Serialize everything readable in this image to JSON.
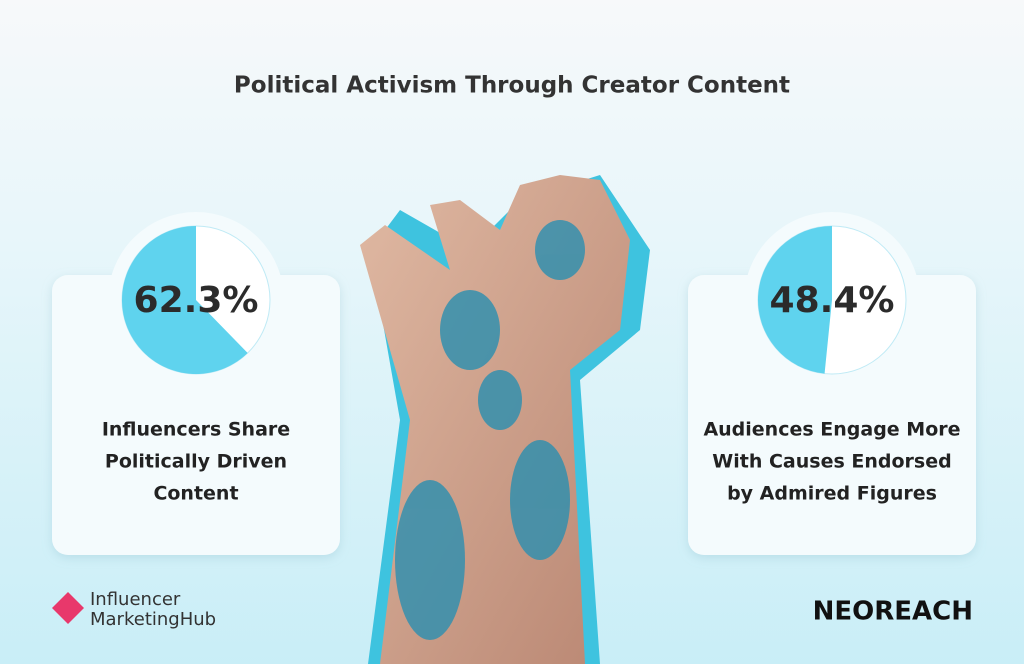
{
  "title": "Political Activism Through Creator Content",
  "chart_data": [
    {
      "type": "pie",
      "values": [
        62.3
      ],
      "value_labels": [
        "62.3%"
      ],
      "color": "#5fd3ee",
      "label_lines": [
        "Influencers Share",
        "Politically Driven",
        "Content"
      ]
    },
    {
      "type": "pie",
      "values": [
        48.4
      ],
      "value_labels": [
        "48.4%"
      ],
      "color": "#5fd3ee",
      "label_lines": [
        "Audiences Engage More",
        "With Causes Endorsed",
        "by Admired Figures"
      ]
    }
  ],
  "logos": {
    "left": [
      "Influencer",
      "MarketingHub"
    ],
    "right": "NEOREACH"
  }
}
